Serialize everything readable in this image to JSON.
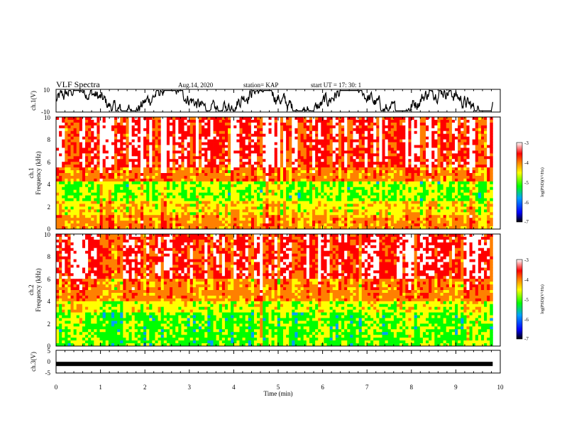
{
  "header": {
    "title": "VLF Spectra",
    "date": "Aug.14, 2020",
    "station": "station= KAP",
    "start": "start  UT  =   17: 30: 1"
  },
  "chart_data": [
    {
      "type": "line",
      "panel": "ch1-waveform",
      "ylabel": "ch.1(V)",
      "ylim": [
        -10,
        10
      ],
      "yticks": [
        "10",
        "-10"
      ],
      "xlim": [
        0,
        10
      ],
      "x_end": 9.83,
      "description_values": {
        "typical_range": [
          -7,
          7
        ]
      }
    },
    {
      "type": "heatmap",
      "panel": "ch1-spectrogram",
      "ylabel_lines": [
        "ch.1",
        "Frequency (kHz)"
      ],
      "ylim": [
        0,
        10
      ],
      "yticks": [
        "0",
        "2",
        "4",
        "6",
        "8",
        "10"
      ],
      "xlim": [
        0,
        10
      ],
      "x_end": 9.83,
      "colorbar": {
        "label": "log(PSD)(V²/Hz)",
        "range": [
          -7,
          -3
        ],
        "ticks": [
          "-3",
          "-4",
          "-5",
          "-6",
          "-7"
        ]
      }
    },
    {
      "type": "heatmap",
      "panel": "ch2-spectrogram",
      "ylabel_lines": [
        "ch.2",
        "Frequency (kHz)"
      ],
      "ylim": [
        0,
        10
      ],
      "yticks": [
        "0",
        "2",
        "4",
        "6",
        "8",
        "10"
      ],
      "xlim": [
        0,
        10
      ],
      "x_end": 9.83,
      "colorbar": {
        "label": "log(PSD)(V²/Hz)",
        "range": [
          -7,
          -3
        ],
        "ticks": [
          "-3",
          "-4",
          "-5",
          "-6",
          "-7"
        ]
      }
    },
    {
      "type": "line",
      "panel": "ch3-waveform",
      "ylabel": "ch.3(V)",
      "ylim": [
        -5,
        5
      ],
      "yticks": [
        "5",
        "0",
        "-5"
      ],
      "xlim": [
        0,
        10
      ],
      "x_end": 9.83,
      "level": -1.0
    }
  ],
  "xaxis": {
    "label": "Time (min)",
    "ticks": [
      "0",
      "1",
      "2",
      "3",
      "4",
      "5",
      "6",
      "7",
      "8",
      "9",
      "10"
    ]
  },
  "colors": {
    "colormap": [
      "#000000",
      "#0000ff",
      "#00a0ff",
      "#00ff00",
      "#ffff00",
      "#ff8000",
      "#ff0000",
      "#ffffff"
    ]
  }
}
